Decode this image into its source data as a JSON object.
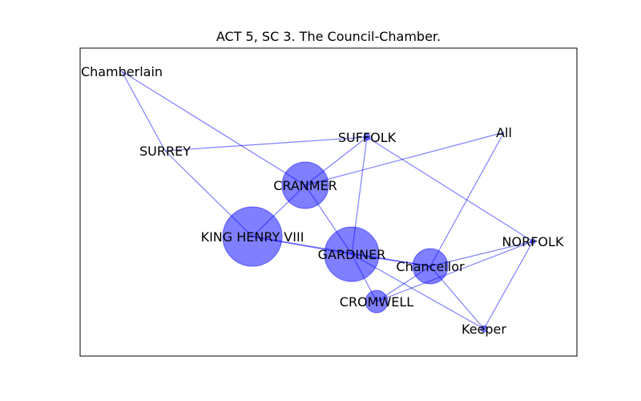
{
  "title": "ACT 5, SC 3. The Council-Chamber.",
  "colors": {
    "node": "#0000ff",
    "edge": "#0000ff"
  },
  "graph": {
    "nodes": [
      {
        "id": "chamberlain",
        "label": "Chamberlain",
        "weight": 0
      },
      {
        "id": "surrey",
        "label": "SURREY",
        "weight": 0
      },
      {
        "id": "suffolk",
        "label": "SUFFOLK",
        "weight": 1
      },
      {
        "id": "all",
        "label": "All",
        "weight": 0
      },
      {
        "id": "cranmer",
        "label": "CRANMER",
        "weight": 30
      },
      {
        "id": "king",
        "label": "KING HENRY VIII",
        "weight": 72
      },
      {
        "id": "gardiner",
        "label": "GARDINER",
        "weight": 58
      },
      {
        "id": "chancellor",
        "label": "Chancellor",
        "weight": 24
      },
      {
        "id": "norfolk",
        "label": "NORFOLK",
        "weight": 0.5
      },
      {
        "id": "cromwell",
        "label": "CROMWELL",
        "weight": 10
      },
      {
        "id": "keeper",
        "label": "Keeper",
        "weight": 1
      }
    ],
    "edges": [
      [
        "chamberlain",
        "surrey"
      ],
      [
        "chamberlain",
        "cranmer"
      ],
      [
        "surrey",
        "suffolk"
      ],
      [
        "surrey",
        "king"
      ],
      [
        "suffolk",
        "cranmer"
      ],
      [
        "suffolk",
        "gardiner"
      ],
      [
        "suffolk",
        "norfolk"
      ],
      [
        "all",
        "cranmer"
      ],
      [
        "all",
        "chancellor"
      ],
      [
        "cranmer",
        "king"
      ],
      [
        "cranmer",
        "gardiner"
      ],
      [
        "king",
        "gardiner"
      ],
      [
        "king",
        "chancellor"
      ],
      [
        "gardiner",
        "chancellor"
      ],
      [
        "gardiner",
        "cromwell"
      ],
      [
        "gardiner",
        "keeper"
      ],
      [
        "chancellor",
        "norfolk"
      ],
      [
        "chancellor",
        "cromwell"
      ],
      [
        "norfolk",
        "keeper"
      ],
      [
        "norfolk",
        "cromwell"
      ],
      [
        "chancellor",
        "keeper"
      ]
    ]
  }
}
